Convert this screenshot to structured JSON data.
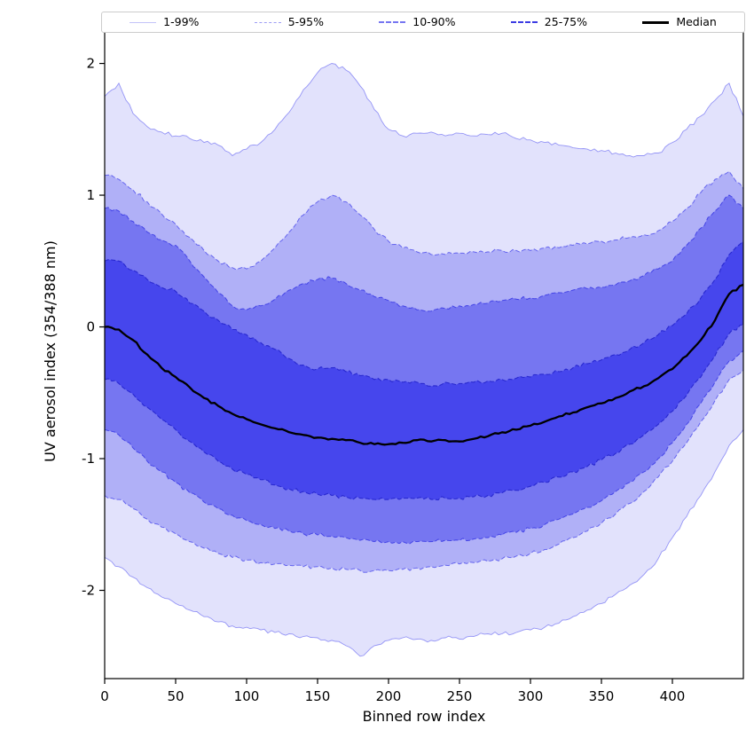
{
  "figure": {
    "background": "#ffffff"
  },
  "chart_data": {
    "type": "area",
    "subtype": "percentile-fan-chart",
    "title": "",
    "xlabel": "Binned row index",
    "ylabel": "UV aerosol index (354/388 nm)",
    "xlim": [
      0,
      450
    ],
    "ylim": [
      -2.67,
      2.3
    ],
    "xticks": [
      0,
      50,
      100,
      150,
      200,
      250,
      300,
      350,
      400
    ],
    "yticks": [
      -2,
      -1,
      0,
      1,
      2
    ],
    "grid": false,
    "legend_position": "top",
    "base_color": "#3c3ceb",
    "x": [
      0,
      10,
      20,
      30,
      40,
      50,
      60,
      70,
      80,
      90,
      100,
      110,
      120,
      130,
      140,
      150,
      160,
      170,
      180,
      190,
      200,
      210,
      220,
      230,
      240,
      250,
      260,
      270,
      280,
      290,
      300,
      310,
      320,
      330,
      340,
      350,
      360,
      370,
      380,
      390,
      400,
      410,
      420,
      430,
      440,
      450
    ],
    "series": [
      {
        "name": "p1",
        "values": [
          -1.75,
          -1.82,
          -1.9,
          -1.98,
          -2.05,
          -2.1,
          -2.15,
          -2.2,
          -2.24,
          -2.27,
          -2.28,
          -2.3,
          -2.32,
          -2.33,
          -2.35,
          -2.36,
          -2.38,
          -2.42,
          -2.5,
          -2.42,
          -2.38,
          -2.36,
          -2.37,
          -2.38,
          -2.36,
          -2.37,
          -2.35,
          -2.33,
          -2.33,
          -2.32,
          -2.3,
          -2.28,
          -2.25,
          -2.2,
          -2.15,
          -2.1,
          -2.03,
          -1.96,
          -1.88,
          -1.76,
          -1.6,
          -1.44,
          -1.28,
          -1.1,
          -0.9,
          -0.78
        ]
      },
      {
        "name": "p5",
        "values": [
          -1.28,
          -1.31,
          -1.38,
          -1.46,
          -1.52,
          -1.57,
          -1.63,
          -1.68,
          -1.72,
          -1.75,
          -1.77,
          -1.79,
          -1.8,
          -1.81,
          -1.82,
          -1.82,
          -1.83,
          -1.84,
          -1.85,
          -1.85,
          -1.85,
          -1.84,
          -1.83,
          -1.82,
          -1.81,
          -1.8,
          -1.79,
          -1.78,
          -1.76,
          -1.74,
          -1.72,
          -1.69,
          -1.65,
          -1.6,
          -1.55,
          -1.49,
          -1.42,
          -1.34,
          -1.25,
          -1.14,
          -1.02,
          -0.88,
          -0.72,
          -0.56,
          -0.4,
          -0.33
        ]
      },
      {
        "name": "p10",
        "values": [
          -0.78,
          -0.82,
          -0.92,
          -1.02,
          -1.1,
          -1.18,
          -1.26,
          -1.33,
          -1.38,
          -1.43,
          -1.47,
          -1.5,
          -1.53,
          -1.55,
          -1.57,
          -1.58,
          -1.59,
          -1.6,
          -1.62,
          -1.63,
          -1.63,
          -1.63,
          -1.63,
          -1.63,
          -1.62,
          -1.62,
          -1.61,
          -1.6,
          -1.58,
          -1.56,
          -1.53,
          -1.5,
          -1.46,
          -1.42,
          -1.37,
          -1.32,
          -1.25,
          -1.18,
          -1.1,
          -1.0,
          -0.88,
          -0.74,
          -0.58,
          -0.42,
          -0.26,
          -0.18
        ]
      },
      {
        "name": "p25",
        "values": [
          -0.4,
          -0.43,
          -0.51,
          -0.61,
          -0.7,
          -0.78,
          -0.87,
          -0.95,
          -1.02,
          -1.08,
          -1.12,
          -1.16,
          -1.2,
          -1.23,
          -1.25,
          -1.27,
          -1.28,
          -1.29,
          -1.3,
          -1.31,
          -1.31,
          -1.3,
          -1.3,
          -1.31,
          -1.3,
          -1.3,
          -1.29,
          -1.28,
          -1.26,
          -1.24,
          -1.21,
          -1.18,
          -1.14,
          -1.1,
          -1.06,
          -1.01,
          -0.96,
          -0.89,
          -0.82,
          -0.74,
          -0.64,
          -0.52,
          -0.38,
          -0.22,
          -0.05,
          0.02
        ]
      },
      {
        "name": "p50",
        "values": [
          0.0,
          -0.02,
          -0.1,
          -0.21,
          -0.31,
          -0.38,
          -0.46,
          -0.54,
          -0.6,
          -0.66,
          -0.7,
          -0.74,
          -0.77,
          -0.8,
          -0.82,
          -0.84,
          -0.85,
          -0.86,
          -0.88,
          -0.89,
          -0.89,
          -0.88,
          -0.86,
          -0.87,
          -0.86,
          -0.87,
          -0.85,
          -0.83,
          -0.8,
          -0.78,
          -0.75,
          -0.72,
          -0.68,
          -0.65,
          -0.61,
          -0.58,
          -0.54,
          -0.49,
          -0.45,
          -0.39,
          -0.32,
          -0.22,
          -0.1,
          0.05,
          0.25,
          0.32
        ]
      },
      {
        "name": "p75",
        "values": [
          0.5,
          0.5,
          0.43,
          0.36,
          0.3,
          0.27,
          0.18,
          0.12,
          0.05,
          -0.02,
          -0.06,
          -0.12,
          -0.17,
          -0.24,
          -0.29,
          -0.32,
          -0.31,
          -0.34,
          -0.37,
          -0.4,
          -0.4,
          -0.42,
          -0.42,
          -0.45,
          -0.42,
          -0.43,
          -0.42,
          -0.41,
          -0.4,
          -0.39,
          -0.38,
          -0.36,
          -0.34,
          -0.31,
          -0.28,
          -0.25,
          -0.21,
          -0.17,
          -0.12,
          -0.06,
          0.01,
          0.1,
          0.22,
          0.36,
          0.55,
          0.65
        ]
      },
      {
        "name": "p90",
        "values": [
          0.9,
          0.88,
          0.8,
          0.72,
          0.66,
          0.62,
          0.5,
          0.38,
          0.26,
          0.16,
          0.13,
          0.16,
          0.21,
          0.28,
          0.33,
          0.36,
          0.37,
          0.33,
          0.28,
          0.23,
          0.2,
          0.16,
          0.13,
          0.12,
          0.14,
          0.16,
          0.17,
          0.18,
          0.2,
          0.21,
          0.22,
          0.24,
          0.26,
          0.28,
          0.29,
          0.3,
          0.32,
          0.35,
          0.39,
          0.44,
          0.5,
          0.62,
          0.75,
          0.88,
          1.0,
          0.9
        ]
      },
      {
        "name": "p95",
        "values": [
          1.15,
          1.12,
          1.04,
          0.95,
          0.86,
          0.78,
          0.68,
          0.58,
          0.5,
          0.45,
          0.44,
          0.5,
          0.6,
          0.72,
          0.85,
          0.95,
          1.0,
          0.95,
          0.85,
          0.74,
          0.65,
          0.6,
          0.57,
          0.55,
          0.55,
          0.56,
          0.57,
          0.57,
          0.58,
          0.58,
          0.58,
          0.6,
          0.6,
          0.62,
          0.63,
          0.65,
          0.66,
          0.68,
          0.7,
          0.73,
          0.8,
          0.9,
          1.02,
          1.12,
          1.18,
          1.05
        ]
      },
      {
        "name": "p99",
        "values": [
          1.75,
          1.85,
          1.62,
          1.52,
          1.48,
          1.45,
          1.43,
          1.4,
          1.38,
          1.3,
          1.35,
          1.4,
          1.5,
          1.63,
          1.8,
          1.93,
          2.0,
          1.95,
          1.83,
          1.65,
          1.5,
          1.45,
          1.47,
          1.48,
          1.45,
          1.47,
          1.45,
          1.46,
          1.47,
          1.43,
          1.42,
          1.4,
          1.38,
          1.36,
          1.35,
          1.34,
          1.32,
          1.3,
          1.3,
          1.32,
          1.4,
          1.5,
          1.6,
          1.72,
          1.85,
          1.6
        ]
      }
    ],
    "bands": [
      {
        "label": "1-99%",
        "lo": "p1",
        "hi": "p99",
        "fill": "rgba(60,60,235,0.15)",
        "edge": "rgba(110,110,242,0.70)",
        "edge_dash": "",
        "edge_width": 0.9
      },
      {
        "label": "5-95%",
        "lo": "p5",
        "hi": "p95",
        "fill": "rgba(60,60,235,0.30)",
        "edge": "rgba(70,70,235,0.75)",
        "edge_dash": "5,2.5",
        "edge_width": 1
      },
      {
        "label": "10-90%",
        "lo": "p10",
        "hi": "p90",
        "fill": "rgba(60,60,235,0.50)",
        "edge": "rgba(55,55,228,0.85)",
        "edge_dash": "5,2.5",
        "edge_width": 1
      },
      {
        "label": "25-75%",
        "lo": "p25",
        "hi": "p75",
        "fill": "rgba(60,60,235,0.82)",
        "edge": "rgba(35,35,205,0.90)",
        "edge_dash": "5,2.5",
        "edge_width": 1.1
      }
    ],
    "median": {
      "label": "Median",
      "series": "p50",
      "color": "#000000",
      "width": 2.3
    },
    "legend": [
      {
        "label": "1-99%",
        "color": "rgba(60,60,235,0.30)",
        "dash": "solid",
        "width": 1
      },
      {
        "label": "5-95%",
        "color": "rgba(60,60,235,0.50)",
        "dash": "dashed",
        "width": 1
      },
      {
        "label": "10-90%",
        "color": "rgba(60,60,235,0.70)",
        "dash": "dashed",
        "width": 2
      },
      {
        "label": "25-75%",
        "color": "rgba(50,50,225,0.95)",
        "dash": "dashed",
        "width": 2
      },
      {
        "label": "Median",
        "color": "#000000",
        "dash": "solid",
        "width": 3
      }
    ]
  }
}
